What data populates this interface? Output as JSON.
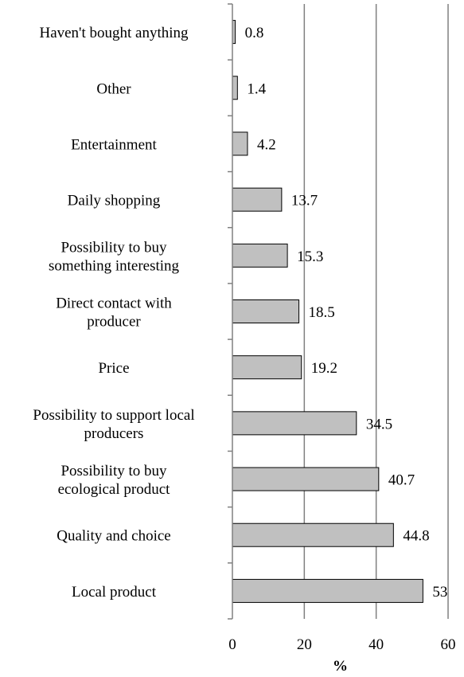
{
  "chart_data": {
    "type": "bar",
    "orientation": "horizontal",
    "categories": [
      [
        "Haven't bought anything"
      ],
      [
        "Other"
      ],
      [
        "Entertainment"
      ],
      [
        "Daily shopping"
      ],
      [
        "Possibility to buy",
        "something interesting"
      ],
      [
        "Direct contact with",
        "producer"
      ],
      [
        "Price"
      ],
      [
        "Possibility to support local",
        "producers"
      ],
      [
        "Possibility to buy",
        "ecological product"
      ],
      [
        "Quality and choice"
      ],
      [
        "Local product"
      ]
    ],
    "values": [
      0.8,
      1.4,
      4.2,
      13.7,
      15.3,
      18.5,
      19.2,
      34.5,
      40.7,
      44.8,
      53
    ],
    "value_labels": [
      "0.8",
      "1.4",
      "4.2",
      "13.7",
      "15.3",
      "18.5",
      "19.2",
      "34.5",
      "40.7",
      "44.8",
      "53"
    ],
    "xlim": [
      0,
      60
    ],
    "xticks": [
      0,
      20,
      40,
      60
    ],
    "xtick_labels": [
      "0",
      "20",
      "40",
      "60"
    ],
    "xlabel": "%",
    "grid": "vertical major gridlines",
    "legend": "none",
    "colors": {
      "bar_fill": "#c0c0c0",
      "bar_stroke": "#000000",
      "gridline": "#808080",
      "axis": "#808080"
    }
  }
}
